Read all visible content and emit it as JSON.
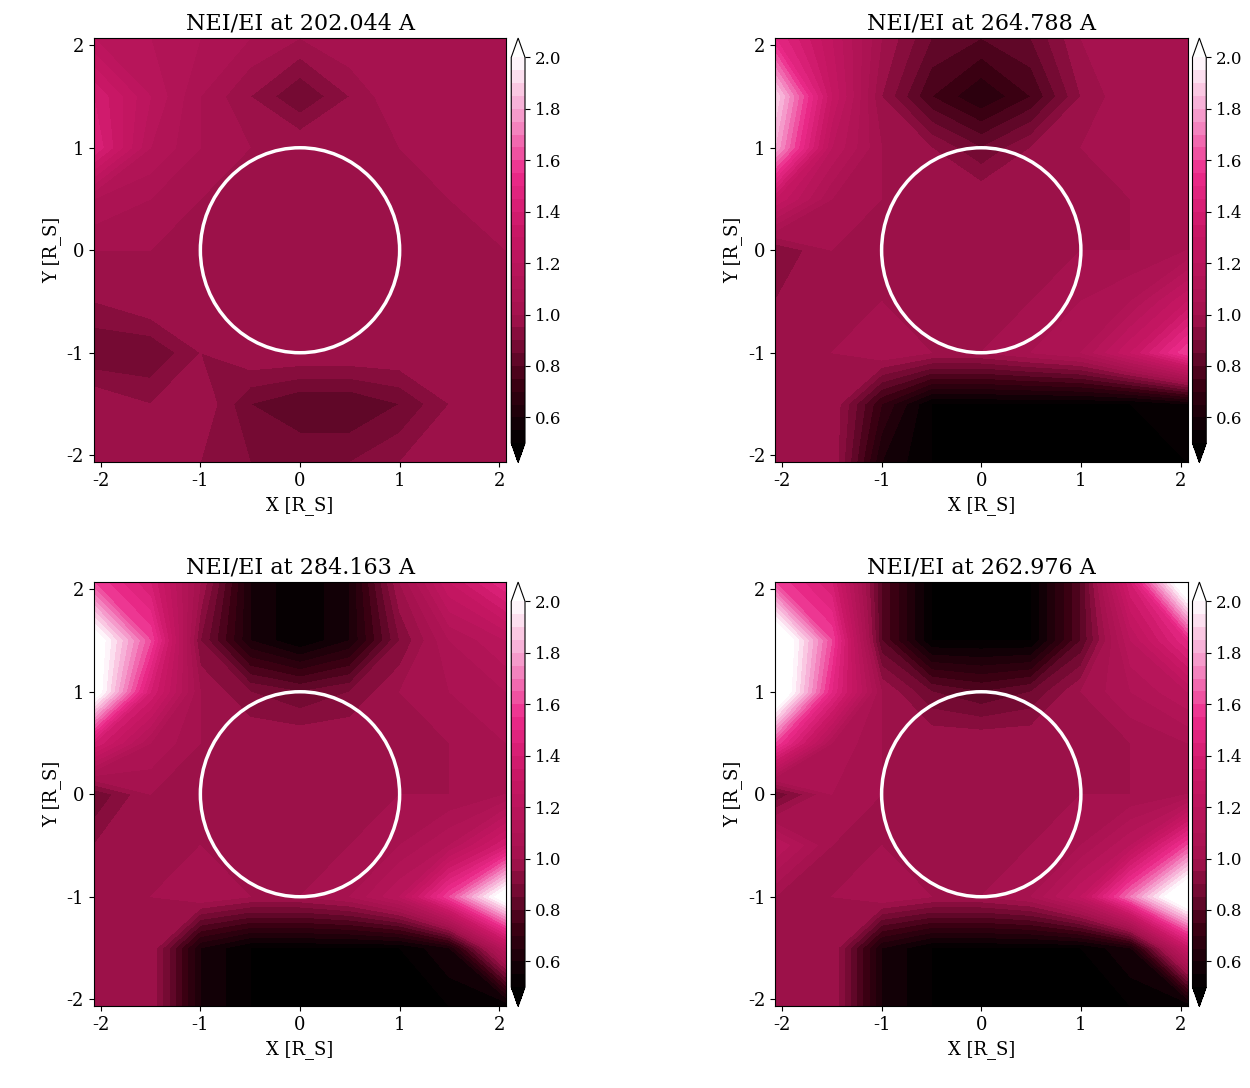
{
  "chart_data": [
    {
      "type": "contour",
      "title": "NEI/EI at 202.044 A",
      "x_label": "X [R_S]",
      "y_label": "Y [R_S]",
      "xlim": [
        -2.07,
        2.07
      ],
      "ylim": [
        -2.07,
        2.07
      ],
      "xticks": [
        -2,
        -1,
        0,
        1,
        2
      ],
      "yticks": [
        -2,
        -1,
        0,
        1,
        2
      ],
      "x": [
        -2.07,
        -1.5,
        -1,
        -0.5,
        0,
        0.5,
        1,
        1.5,
        2.07
      ],
      "y": [
        -2.07,
        -1.5,
        -1,
        -0.5,
        0,
        0.5,
        1,
        1.5,
        2.07
      ],
      "cells": [
        [
          1.0,
          1.0,
          0.95,
          0.9,
          0.9,
          0.9,
          0.95,
          1.0,
          1.0
        ],
        [
          1.0,
          0.95,
          1.0,
          0.85,
          0.8,
          0.8,
          0.85,
          0.95,
          1.0
        ],
        [
          0.85,
          0.85,
          0.95,
          1.0,
          1.0,
          1.0,
          1.0,
          1.0,
          0.95
        ],
        [
          0.95,
          1.0,
          1.0,
          1.0,
          1.0,
          1.0,
          1.0,
          1.0,
          0.95
        ],
        [
          1.0,
          1.0,
          1.0,
          1.0,
          1.0,
          1.0,
          1.0,
          1.0,
          1.0
        ],
        [
          1.1,
          1.05,
          1.0,
          1.0,
          1.0,
          1.0,
          1.0,
          1.0,
          1.05
        ],
        [
          1.45,
          1.15,
          1.05,
          1.0,
          1.0,
          1.0,
          1.0,
          1.05,
          1.05
        ],
        [
          1.4,
          1.2,
          1.05,
          0.95,
          0.85,
          0.95,
          1.05,
          1.05,
          1.05
        ],
        [
          1.2,
          1.15,
          1.1,
          1.05,
          1.0,
          1.05,
          1.05,
          1.05,
          1.05
        ]
      ],
      "colorbar_range": [
        0.5,
        2.0
      ],
      "colorbar_ticks": [
        0.6,
        0.8,
        1.0,
        1.2,
        1.4,
        1.6,
        1.8,
        2.0
      ],
      "circle": {
        "center": [
          0,
          0
        ],
        "radius": 1
      }
    },
    {
      "type": "contour",
      "title": "NEI/EI at 264.788 A",
      "x_label": "X [R_S]",
      "y_label": "Y [R_S]",
      "xlim": [
        -2.07,
        2.07
      ],
      "ylim": [
        -2.07,
        2.07
      ],
      "xticks": [
        -2,
        -1,
        0,
        1,
        2
      ],
      "yticks": [
        -2,
        -1,
        0,
        1,
        2
      ],
      "x": [
        -2.07,
        -1.5,
        -1,
        -0.5,
        0,
        0.5,
        1,
        1.5,
        2.07
      ],
      "y": [
        -2.07,
        -1.5,
        -1,
        -0.5,
        0,
        0.5,
        1,
        1.5,
        2.07
      ],
      "cells": [
        [
          1.0,
          1.0,
          0.6,
          0.5,
          0.5,
          0.5,
          0.5,
          0.5,
          0.5
        ],
        [
          1.0,
          1.0,
          0.7,
          0.5,
          0.5,
          0.5,
          0.5,
          0.5,
          0.55
        ],
        [
          1.0,
          1.0,
          1.05,
          1.0,
          1.0,
          1.05,
          1.1,
          1.3,
          1.6
        ],
        [
          0.95,
          1.0,
          1.0,
          1.0,
          1.0,
          1.0,
          1.05,
          1.1,
          1.3
        ],
        [
          0.9,
          1.0,
          1.0,
          1.0,
          1.0,
          1.0,
          1.0,
          1.0,
          1.05
        ],
        [
          1.3,
          1.05,
          1.0,
          1.0,
          1.0,
          1.0,
          1.0,
          1.0,
          1.05
        ],
        [
          1.8,
          1.2,
          1.0,
          0.95,
          0.85,
          0.95,
          1.0,
          1.05,
          1.05
        ],
        [
          1.9,
          1.3,
          0.95,
          0.75,
          0.65,
          0.75,
          0.95,
          1.05,
          1.05
        ],
        [
          1.5,
          1.25,
          1.0,
          0.85,
          0.8,
          0.85,
          1.0,
          1.05,
          1.05
        ]
      ],
      "colorbar_range": [
        0.5,
        2.0
      ],
      "colorbar_ticks": [
        0.6,
        0.8,
        1.0,
        1.2,
        1.4,
        1.6,
        1.8,
        2.0
      ],
      "circle": {
        "center": [
          0,
          0
        ],
        "radius": 1
      }
    },
    {
      "type": "contour",
      "title": "NEI/EI at 284.163 A",
      "x_label": "X [R_S]",
      "y_label": "Y [R_S]",
      "xlim": [
        -2.07,
        2.07
      ],
      "ylim": [
        -2.07,
        2.07
      ],
      "xticks": [
        -2,
        -1,
        0,
        1,
        2
      ],
      "yticks": [
        -2,
        -1,
        0,
        1,
        2
      ],
      "x": [
        -2.07,
        -1.5,
        -1,
        -0.5,
        0,
        0.5,
        1,
        1.5,
        2.07
      ],
      "y": [
        -2.07,
        -1.5,
        -1,
        -0.5,
        0,
        0.5,
        1,
        1.5,
        2.07
      ],
      "cells": [
        [
          1.0,
          1.0,
          0.6,
          0.5,
          0.5,
          0.5,
          0.5,
          0.5,
          0.5
        ],
        [
          1.0,
          1.0,
          0.6,
          0.5,
          0.5,
          0.5,
          0.5,
          0.6,
          1.2
        ],
        [
          1.0,
          1.0,
          1.05,
          1.0,
          1.0,
          1.05,
          1.2,
          1.6,
          2.1
        ],
        [
          0.95,
          1.0,
          1.0,
          1.0,
          1.0,
          1.0,
          1.05,
          1.15,
          1.4
        ],
        [
          0.85,
          1.0,
          1.0,
          1.0,
          1.0,
          1.0,
          1.0,
          1.0,
          1.05
        ],
        [
          1.4,
          1.1,
          1.0,
          1.0,
          1.0,
          1.0,
          1.0,
          1.0,
          1.05
        ],
        [
          2.1,
          1.4,
          1.0,
          0.9,
          0.85,
          0.9,
          1.0,
          1.05,
          1.1
        ],
        [
          2.1,
          1.6,
          0.9,
          0.6,
          0.5,
          0.6,
          0.9,
          1.1,
          1.2
        ],
        [
          1.6,
          1.4,
          1.0,
          0.6,
          0.5,
          0.6,
          1.0,
          1.3,
          1.5
        ]
      ],
      "colorbar_range": [
        0.5,
        2.0
      ],
      "colorbar_ticks": [
        0.6,
        0.8,
        1.0,
        1.2,
        1.4,
        1.6,
        1.8,
        2.0
      ],
      "circle": {
        "center": [
          0,
          0
        ],
        "radius": 1
      }
    },
    {
      "type": "contour",
      "title": "NEI/EI at 262.976 A",
      "x_label": "X [R_S]",
      "y_label": "Y [R_S]",
      "xlim": [
        -2.07,
        2.07
      ],
      "ylim": [
        -2.07,
        2.07
      ],
      "xticks": [
        -2,
        -1,
        0,
        1,
        2
      ],
      "yticks": [
        -2,
        -1,
        0,
        1,
        2
      ],
      "x": [
        -2.07,
        -1.5,
        -1,
        -0.5,
        0,
        0.5,
        1,
        1.5,
        2.07
      ],
      "y": [
        -2.07,
        -1.5,
        -1,
        -0.5,
        0,
        0.5,
        1,
        1.5,
        2.07
      ],
      "cells": [
        [
          1.0,
          1.0,
          0.6,
          0.5,
          0.5,
          0.5,
          0.5,
          0.5,
          0.5
        ],
        [
          1.0,
          1.0,
          0.6,
          0.5,
          0.5,
          0.5,
          0.5,
          0.6,
          1.3
        ],
        [
          1.0,
          1.0,
          1.05,
          1.0,
          1.0,
          1.05,
          1.25,
          1.7,
          2.2
        ],
        [
          1.2,
          1.0,
          1.0,
          1.0,
          1.0,
          1.0,
          1.05,
          1.2,
          1.6
        ],
        [
          0.85,
          1.05,
          1.0,
          1.0,
          1.0,
          1.0,
          1.0,
          1.0,
          1.05
        ],
        [
          1.6,
          1.1,
          1.0,
          1.0,
          1.0,
          1.0,
          1.0,
          1.0,
          1.05
        ],
        [
          2.2,
          1.5,
          1.0,
          0.85,
          0.8,
          0.85,
          1.0,
          1.1,
          1.2
        ],
        [
          2.2,
          1.6,
          0.8,
          0.5,
          0.5,
          0.5,
          0.8,
          1.2,
          1.5
        ],
        [
          1.6,
          1.4,
          0.8,
          0.5,
          0.5,
          0.5,
          0.8,
          1.4,
          2.2
        ]
      ],
      "colorbar_range": [
        0.5,
        2.0
      ],
      "colorbar_ticks": [
        0.6,
        0.8,
        1.0,
        1.2,
        1.4,
        1.6,
        1.8,
        2.0
      ],
      "circle": {
        "center": [
          0,
          0
        ],
        "radius": 1
      }
    }
  ]
}
